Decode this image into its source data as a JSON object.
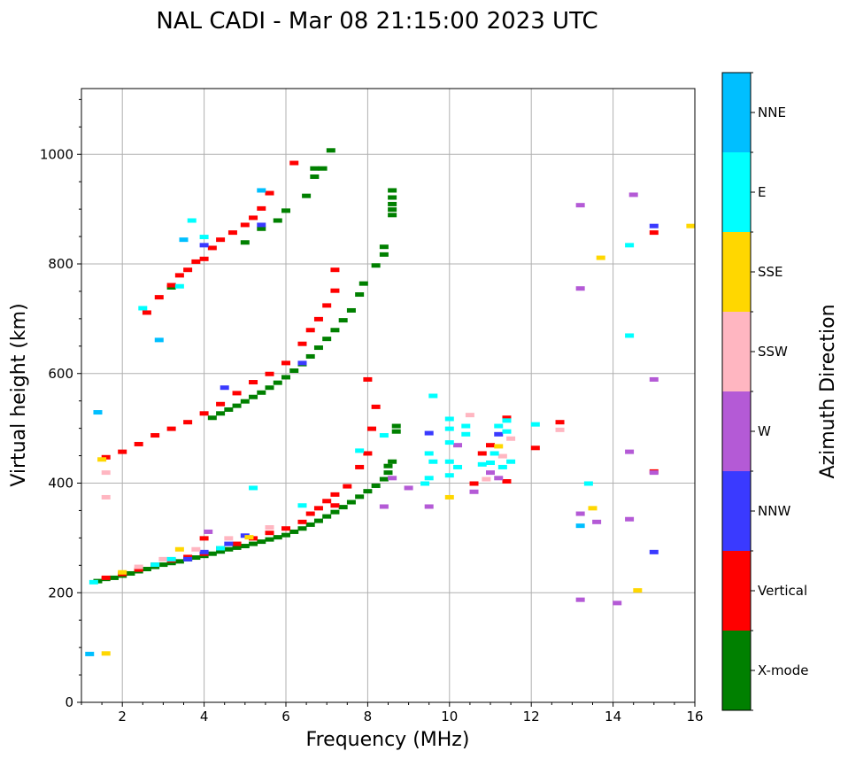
{
  "chart_data": {
    "type": "scatter",
    "title": "NAL CADI - Mar 08 21:15:00 2023 UTC",
    "xlabel": "Frequency (MHz)",
    "ylabel": "Virtual height (km)",
    "xlim": [
      1.0,
      16.0
    ],
    "ylim": [
      0,
      1120
    ],
    "xticks": [
      2,
      4,
      6,
      8,
      10,
      12,
      14,
      16
    ],
    "yticks": [
      0,
      200,
      400,
      600,
      800,
      1000
    ],
    "grid": true,
    "colorbar": {
      "title": "Azimuth Direction",
      "categories": [
        {
          "name": "X-mode",
          "color": "#008000"
        },
        {
          "name": "Vertical",
          "color": "#ff0000"
        },
        {
          "name": "NNW",
          "color": "#3a3aff"
        },
        {
          "name": "W",
          "color": "#b45ad6"
        },
        {
          "name": "SSW",
          "color": "#ffb6c1"
        },
        {
          "name": "SSE",
          "color": "#ffd700"
        },
        {
          "name": "E",
          "color": "#00ffff"
        },
        {
          "name": "NNE",
          "color": "#00bfff"
        }
      ]
    },
    "series": [
      {
        "name": "X-mode",
        "points": [
          [
            1.4,
            222
          ],
          [
            1.6,
            226
          ],
          [
            1.8,
            228
          ],
          [
            2.0,
            232
          ],
          [
            2.2,
            236
          ],
          [
            2.4,
            240
          ],
          [
            2.6,
            244
          ],
          [
            2.8,
            248
          ],
          [
            3.0,
            252
          ],
          [
            3.2,
            255
          ],
          [
            3.4,
            258
          ],
          [
            3.6,
            262
          ],
          [
            3.8,
            265
          ],
          [
            4.0,
            268
          ],
          [
            4.2,
            272
          ],
          [
            4.4,
            276
          ],
          [
            4.6,
            280
          ],
          [
            4.8,
            283
          ],
          [
            5.0,
            286
          ],
          [
            5.2,
            290
          ],
          [
            5.4,
            294
          ],
          [
            5.6,
            298
          ],
          [
            5.8,
            302
          ],
          [
            6.0,
            306
          ],
          [
            6.2,
            312
          ],
          [
            6.4,
            318
          ],
          [
            6.6,
            325
          ],
          [
            6.8,
            332
          ],
          [
            7.0,
            340
          ],
          [
            7.2,
            348
          ],
          [
            7.4,
            357
          ],
          [
            7.6,
            366
          ],
          [
            7.8,
            376
          ],
          [
            8.0,
            386
          ],
          [
            8.2,
            396
          ],
          [
            8.4,
            408
          ],
          [
            8.5,
            420
          ],
          [
            8.5,
            432
          ],
          [
            8.6,
            440
          ],
          [
            8.7,
            495
          ],
          [
            8.7,
            505
          ],
          [
            4.2,
            520
          ],
          [
            4.4,
            528
          ],
          [
            4.6,
            535
          ],
          [
            4.8,
            542
          ],
          [
            5.0,
            550
          ],
          [
            5.2,
            558
          ],
          [
            5.4,
            566
          ],
          [
            5.6,
            575
          ],
          [
            5.8,
            584
          ],
          [
            6.0,
            594
          ],
          [
            6.2,
            606
          ],
          [
            6.4,
            618
          ],
          [
            6.6,
            632
          ],
          [
            6.8,
            648
          ],
          [
            7.0,
            664
          ],
          [
            7.2,
            680
          ],
          [
            7.4,
            698
          ],
          [
            7.6,
            716
          ],
          [
            7.8,
            745
          ],
          [
            7.9,
            765
          ],
          [
            8.2,
            798
          ],
          [
            8.4,
            818
          ],
          [
            8.4,
            832
          ],
          [
            8.6,
            890
          ],
          [
            8.6,
            900
          ],
          [
            8.6,
            910
          ],
          [
            8.6,
            922
          ],
          [
            8.6,
            935
          ],
          [
            5.0,
            840
          ],
          [
            5.4,
            865
          ],
          [
            5.8,
            880
          ],
          [
            6.0,
            898
          ],
          [
            6.5,
            925
          ],
          [
            6.7,
            960
          ],
          [
            6.7,
            975
          ],
          [
            6.9,
            975
          ],
          [
            7.1,
            1008
          ],
          [
            3.2,
            758
          ]
        ]
      },
      {
        "name": "Vertical",
        "points": [
          [
            1.6,
            228
          ],
          [
            2.0,
            235
          ],
          [
            2.4,
            243
          ],
          [
            2.8,
            252
          ],
          [
            3.2,
            260
          ],
          [
            3.6,
            266
          ],
          [
            4.0,
            272
          ],
          [
            4.4,
            282
          ],
          [
            4.8,
            290
          ],
          [
            5.2,
            300
          ],
          [
            5.6,
            310
          ],
          [
            6.0,
            318
          ],
          [
            6.4,
            330
          ],
          [
            6.6,
            345
          ],
          [
            6.8,
            355
          ],
          [
            7.0,
            368
          ],
          [
            7.2,
            380
          ],
          [
            7.5,
            395
          ],
          [
            7.8,
            430
          ],
          [
            8.0,
            455
          ],
          [
            8.1,
            500
          ],
          [
            8.2,
            540
          ],
          [
            8.0,
            590
          ],
          [
            1.6,
            448
          ],
          [
            2.0,
            458
          ],
          [
            2.4,
            472
          ],
          [
            2.8,
            488
          ],
          [
            3.2,
            500
          ],
          [
            3.6,
            512
          ],
          [
            4.0,
            528
          ],
          [
            4.4,
            545
          ],
          [
            4.8,
            565
          ],
          [
            5.2,
            585
          ],
          [
            5.6,
            600
          ],
          [
            6.0,
            620
          ],
          [
            6.4,
            655
          ],
          [
            6.6,
            680
          ],
          [
            6.8,
            700
          ],
          [
            7.0,
            725
          ],
          [
            7.2,
            752
          ],
          [
            7.2,
            790
          ],
          [
            2.6,
            712
          ],
          [
            2.9,
            740
          ],
          [
            3.2,
            762
          ],
          [
            3.4,
            780
          ],
          [
            3.6,
            790
          ],
          [
            3.8,
            805
          ],
          [
            4.0,
            810
          ],
          [
            4.2,
            830
          ],
          [
            4.4,
            845
          ],
          [
            4.7,
            858
          ],
          [
            5.0,
            872
          ],
          [
            5.2,
            885
          ],
          [
            5.4,
            902
          ],
          [
            5.6,
            930
          ],
          [
            6.2,
            985
          ],
          [
            7.2,
            360
          ],
          [
            10.6,
            400
          ],
          [
            10.8,
            455
          ],
          [
            11.0,
            470
          ],
          [
            11.4,
            404
          ],
          [
            11.4,
            520
          ],
          [
            12.1,
            465
          ],
          [
            12.7,
            512
          ],
          [
            15.0,
            858
          ],
          [
            15.0,
            422
          ],
          [
            4.0,
            300
          ]
        ]
      },
      {
        "name": "NNW",
        "points": [
          [
            3.6,
            262
          ],
          [
            4.0,
            275
          ],
          [
            4.6,
            290
          ],
          [
            5.0,
            305
          ],
          [
            4.5,
            575
          ],
          [
            4.0,
            835
          ],
          [
            5.4,
            872
          ],
          [
            15.0,
            870
          ],
          [
            15.0,
            275
          ],
          [
            9.5,
            492
          ],
          [
            11.2,
            490
          ],
          [
            6.4,
            620
          ]
        ]
      },
      {
        "name": "W",
        "points": [
          [
            4.1,
            312
          ],
          [
            8.4,
            358
          ],
          [
            8.6,
            410
          ],
          [
            9.0,
            392
          ],
          [
            9.5,
            358
          ],
          [
            10.6,
            385
          ],
          [
            11.0,
            420
          ],
          [
            11.2,
            410
          ],
          [
            13.2,
            908
          ],
          [
            13.2,
            756
          ],
          [
            13.2,
            345
          ],
          [
            13.2,
            188
          ],
          [
            13.6,
            330
          ],
          [
            14.1,
            182
          ],
          [
            14.5,
            927
          ],
          [
            14.4,
            458
          ],
          [
            14.4,
            335
          ],
          [
            15.0,
            590
          ],
          [
            15.0,
            420
          ],
          [
            10.2,
            470
          ]
        ]
      },
      {
        "name": "SSW",
        "points": [
          [
            2.4,
            248
          ],
          [
            3.0,
            262
          ],
          [
            3.8,
            280
          ],
          [
            4.6,
            300
          ],
          [
            5.6,
            320
          ],
          [
            1.6,
            420
          ],
          [
            1.6,
            375
          ],
          [
            10.5,
            525
          ],
          [
            10.9,
            408
          ],
          [
            11.3,
            450
          ],
          [
            12.7,
            498
          ],
          [
            11.5,
            482
          ]
        ]
      },
      {
        "name": "SSE",
        "points": [
          [
            1.5,
            444
          ],
          [
            2.0,
            238
          ],
          [
            3.4,
            280
          ],
          [
            5.1,
            302
          ],
          [
            10.0,
            375
          ],
          [
            11.2,
            468
          ],
          [
            13.5,
            355
          ],
          [
            13.7,
            812
          ],
          [
            14.6,
            205
          ],
          [
            15.9,
            870
          ],
          [
            1.6,
            90
          ]
        ]
      },
      {
        "name": "E",
        "points": [
          [
            1.3,
            220
          ],
          [
            2.8,
            252
          ],
          [
            3.2,
            262
          ],
          [
            4.4,
            282
          ],
          [
            6.4,
            360
          ],
          [
            7.8,
            460
          ],
          [
            8.4,
            488
          ],
          [
            9.4,
            400
          ],
          [
            9.5,
            410
          ],
          [
            9.6,
            440
          ],
          [
            9.5,
            455
          ],
          [
            10.0,
            415
          ],
          [
            10.0,
            440
          ],
          [
            10.0,
            475
          ],
          [
            10.0,
            500
          ],
          [
            10.0,
            518
          ],
          [
            10.2,
            430
          ],
          [
            10.4,
            490
          ],
          [
            10.4,
            505
          ],
          [
            10.8,
            435
          ],
          [
            11.0,
            438
          ],
          [
            11.1,
            455
          ],
          [
            11.2,
            505
          ],
          [
            11.3,
            430
          ],
          [
            11.4,
            495
          ],
          [
            11.4,
            515
          ],
          [
            11.5,
            440
          ],
          [
            12.1,
            508
          ],
          [
            13.4,
            400
          ],
          [
            14.4,
            670
          ],
          [
            14.4,
            835
          ],
          [
            5.2,
            392
          ],
          [
            3.7,
            880
          ],
          [
            4.0,
            850
          ],
          [
            2.5,
            720
          ],
          [
            9.6,
            560
          ],
          [
            3.4,
            760
          ]
        ]
      },
      {
        "name": "NNE",
        "points": [
          [
            1.2,
            89
          ],
          [
            1.4,
            530
          ],
          [
            2.9,
            662
          ],
          [
            3.5,
            845
          ],
          [
            13.2,
            323
          ],
          [
            5.4,
            935
          ]
        ]
      }
    ]
  }
}
